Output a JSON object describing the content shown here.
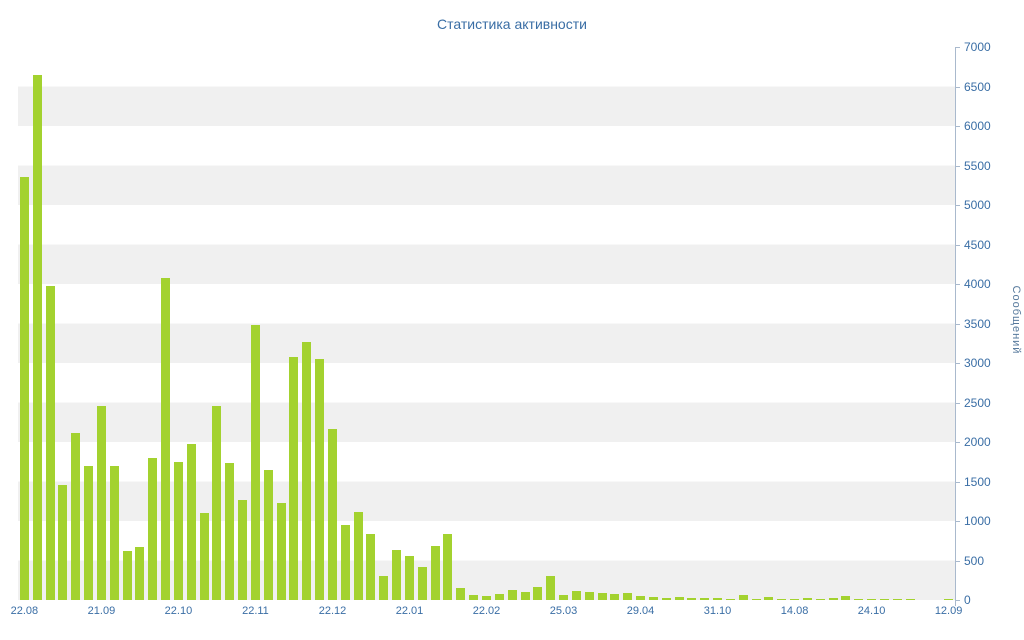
{
  "chart_data": {
    "type": "bar",
    "title": "Статистика активности",
    "ylabel": "Сообщений",
    "xlabel": "",
    "ylim": [
      0,
      7000
    ],
    "y_tick_step": 500,
    "legend": "none",
    "grid": "striped-bands-500",
    "bar_color": "#a3d22f",
    "title_color": "#3a6ea5",
    "axis_text_color": "#3a6ea5",
    "stripe_color": "#f0f0f0",
    "x_tick_labels": [
      "22.08",
      "21.09",
      "22.10",
      "22.11",
      "22.12",
      "22.01",
      "22.02",
      "25.03",
      "29.04",
      "31.10",
      "14.08",
      "24.10",
      "12.09"
    ],
    "x_tick_positions": [
      0,
      6,
      12,
      18,
      24,
      30,
      36,
      42,
      48,
      54,
      60,
      66,
      72
    ],
    "values": [
      5350,
      6650,
      3980,
      1450,
      2120,
      1700,
      2450,
      1700,
      620,
      670,
      1800,
      4080,
      1750,
      1980,
      1100,
      2450,
      1730,
      1260,
      3480,
      1650,
      1230,
      3080,
      3270,
      3050,
      2160,
      950,
      1120,
      830,
      300,
      630,
      560,
      420,
      680,
      830,
      150,
      60,
      50,
      80,
      130,
      100,
      160,
      300,
      60,
      120,
      100,
      90,
      80,
      90,
      50,
      40,
      20,
      40,
      20,
      30,
      20,
      10,
      60,
      10,
      40,
      10,
      10,
      20,
      10,
      30,
      50,
      10,
      5,
      5,
      10,
      5,
      0,
      0,
      5
    ]
  }
}
